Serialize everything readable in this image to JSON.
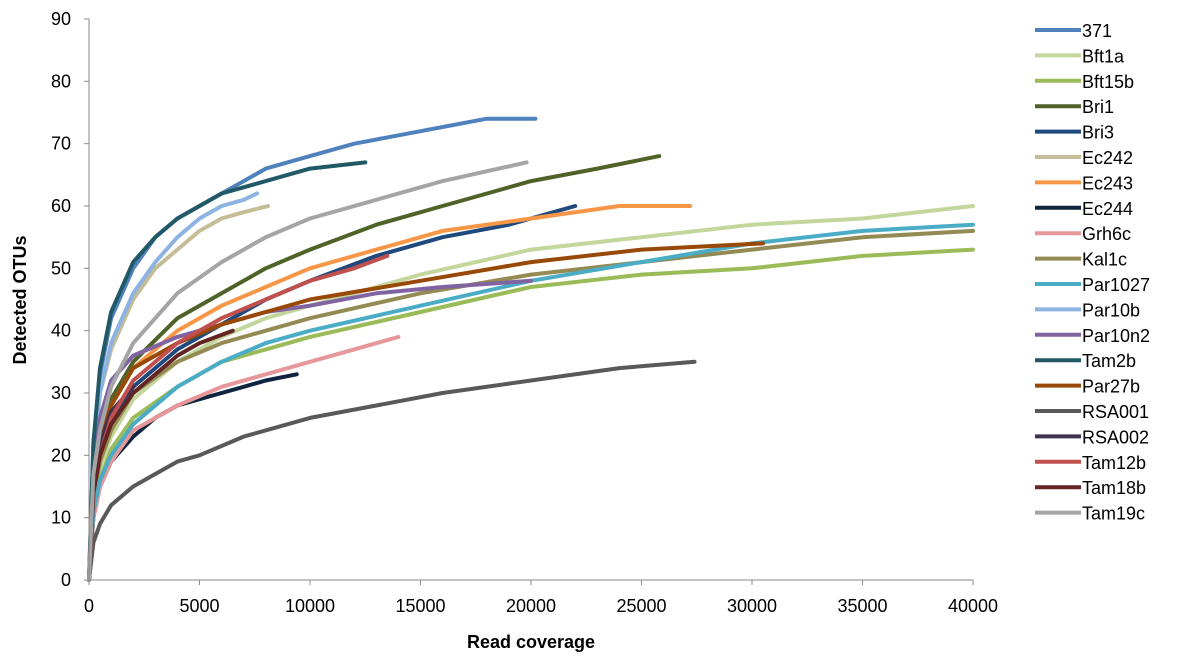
{
  "chart_data": {
    "type": "line",
    "title": "",
    "xlabel": "Read coverage",
    "ylabel": "Detected OTUs",
    "xlim": [
      0,
      40000
    ],
    "ylim": [
      0,
      90
    ],
    "x_ticks": [
      0,
      5000,
      10000,
      15000,
      20000,
      25000,
      30000,
      35000,
      40000
    ],
    "y_ticks": [
      0,
      10,
      20,
      30,
      40,
      50,
      60,
      70,
      80,
      90
    ],
    "grid": false,
    "legend_position": "right",
    "series": [
      {
        "name": "371",
        "color": "#4f81bd",
        "x": [
          0,
          200,
          500,
          1000,
          2000,
          3000,
          4000,
          5000,
          6000,
          7000,
          8000,
          10000,
          12000,
          15000,
          18000,
          20200
        ],
        "y": [
          0,
          22,
          33,
          42,
          50,
          55,
          58,
          60,
          62,
          64,
          66,
          68,
          70,
          72,
          74,
          74
        ]
      },
      {
        "name": "Bft1a",
        "color": "#c3d69b",
        "x": [
          0,
          200,
          500,
          1000,
          2000,
          4000,
          6000,
          8000,
          10000,
          15000,
          20000,
          25000,
          30000,
          35000,
          40000
        ],
        "y": [
          0,
          12,
          18,
          23,
          29,
          35,
          39,
          42,
          44,
          49,
          53,
          55,
          57,
          58,
          60
        ]
      },
      {
        "name": "Bft15b",
        "color": "#9bbb59",
        "x": [
          0,
          200,
          500,
          1000,
          2000,
          4000,
          6000,
          8000,
          10000,
          15000,
          20000,
          25000,
          30000,
          35000,
          40000
        ],
        "y": [
          0,
          11,
          16,
          21,
          26,
          31,
          35,
          37,
          39,
          43,
          47,
          49,
          50,
          52,
          53
        ]
      },
      {
        "name": "Bri1",
        "color": "#4f6228",
        "x": [
          0,
          200,
          500,
          1000,
          2000,
          4000,
          6000,
          8000,
          10000,
          13000,
          16000,
          20000,
          23000,
          25800
        ],
        "y": [
          0,
          16,
          23,
          29,
          35,
          42,
          46,
          50,
          53,
          57,
          60,
          64,
          66,
          68
        ]
      },
      {
        "name": "Bri3",
        "color": "#1f497d",
        "x": [
          0,
          200,
          500,
          1000,
          2000,
          4000,
          6000,
          8000,
          10000,
          13000,
          16000,
          19000,
          22000
        ],
        "y": [
          0,
          14,
          20,
          25,
          31,
          37,
          41,
          45,
          48,
          52,
          55,
          57,
          60
        ]
      },
      {
        "name": "Ec242",
        "color": "#c4bd97",
        "x": [
          0,
          200,
          500,
          1000,
          2000,
          3000,
          4000,
          5000,
          6000,
          7000,
          8100
        ],
        "y": [
          0,
          20,
          30,
          37,
          45,
          50,
          53,
          56,
          58,
          59,
          60
        ]
      },
      {
        "name": "Ec243",
        "color": "#f79646",
        "x": [
          0,
          200,
          500,
          1000,
          2000,
          4000,
          6000,
          8000,
          10000,
          13000,
          16000,
          20000,
          24000,
          27200
        ],
        "y": [
          0,
          16,
          22,
          28,
          34,
          40,
          44,
          47,
          50,
          53,
          56,
          58,
          60,
          60
        ]
      },
      {
        "name": "Ec244",
        "color": "#0f243e",
        "x": [
          0,
          200,
          500,
          1000,
          2000,
          3000,
          4000,
          5000,
          6000,
          7000,
          8000,
          9400
        ],
        "y": [
          0,
          10,
          15,
          19,
          23,
          26,
          28,
          29,
          30,
          31,
          32,
          33
        ]
      },
      {
        "name": "Grh6c",
        "color": "#e6979a",
        "x": [
          0,
          200,
          500,
          1000,
          2000,
          4000,
          6000,
          8000,
          10000,
          12000,
          14000
        ],
        "y": [
          0,
          10,
          15,
          19,
          24,
          28,
          31,
          33,
          35,
          37,
          39
        ]
      },
      {
        "name": "Kal1c",
        "color": "#948a54",
        "x": [
          0,
          200,
          500,
          1000,
          2000,
          4000,
          6000,
          8000,
          10000,
          15000,
          20000,
          25000,
          30000,
          35000,
          40000
        ],
        "y": [
          0,
          13,
          19,
          24,
          30,
          35,
          38,
          40,
          42,
          46,
          49,
          51,
          53,
          55,
          56
        ]
      },
      {
        "name": "Par1027",
        "color": "#4bacc6",
        "x": [
          0,
          200,
          500,
          1000,
          2000,
          4000,
          6000,
          8000,
          10000,
          15000,
          20000,
          25000,
          30000,
          35000,
          40000
        ],
        "y": [
          0,
          11,
          16,
          20,
          25,
          31,
          35,
          38,
          40,
          44,
          48,
          51,
          54,
          56,
          57
        ]
      },
      {
        "name": "Par10b",
        "color": "#8db3e2",
        "x": [
          0,
          200,
          500,
          1000,
          2000,
          3000,
          4000,
          5000,
          6000,
          7000,
          7600
        ],
        "y": [
          0,
          20,
          30,
          38,
          46,
          51,
          55,
          58,
          60,
          61,
          62
        ]
      },
      {
        "name": "Par10n2",
        "color": "#8064a2",
        "x": [
          0,
          200,
          500,
          1000,
          2000,
          4000,
          6000,
          8000,
          10000,
          13000,
          16000,
          20000
        ],
        "y": [
          0,
          18,
          26,
          32,
          36,
          39,
          41,
          43,
          44,
          46,
          47,
          48
        ]
      },
      {
        "name": "Tam2b",
        "color": "#215967",
        "x": [
          0,
          200,
          500,
          1000,
          2000,
          3000,
          4000,
          5000,
          6000,
          8000,
          10000,
          12500
        ],
        "y": [
          0,
          22,
          34,
          43,
          51,
          55,
          58,
          60,
          62,
          64,
          66,
          67
        ]
      },
      {
        "name": "Par27b",
        "color": "#984807",
        "x": [
          0,
          200,
          500,
          1000,
          2000,
          4000,
          6000,
          8000,
          10000,
          15000,
          20000,
          25000,
          30500
        ],
        "y": [
          0,
          15,
          22,
          28,
          34,
          38,
          41,
          43,
          45,
          48,
          51,
          53,
          54
        ]
      },
      {
        "name": "RSA001",
        "color": "#595959",
        "x": [
          0,
          200,
          500,
          1000,
          2000,
          3000,
          4000,
          5000,
          7000,
          10000,
          13000,
          16000,
          20000,
          24000,
          27400
        ],
        "y": [
          0,
          6,
          9,
          12,
          15,
          17,
          19,
          20,
          23,
          26,
          28,
          30,
          32,
          34,
          35
        ]
      },
      {
        "name": "RSA002",
        "color": "#403151",
        "x": [
          0,
          200,
          500,
          1000,
          1500,
          2000
        ],
        "y": [
          0,
          16,
          22,
          27,
          29,
          31
        ]
      },
      {
        "name": "Tam12b",
        "color": "#c0504d",
        "x": [
          0,
          200,
          500,
          1000,
          2000,
          4000,
          6000,
          8000,
          10000,
          12000,
          13500
        ],
        "y": [
          0,
          14,
          20,
          26,
          32,
          38,
          42,
          45,
          48,
          50,
          52
        ]
      },
      {
        "name": "Tam18b",
        "color": "#632523",
        "x": [
          0,
          200,
          500,
          1000,
          2000,
          3000,
          4000,
          5000,
          6500
        ],
        "y": [
          0,
          14,
          20,
          25,
          30,
          33,
          36,
          38,
          40
        ]
      },
      {
        "name": "Tam19c",
        "color": "#a5a5a5",
        "x": [
          0,
          200,
          500,
          1000,
          2000,
          4000,
          6000,
          8000,
          10000,
          13000,
          16000,
          19800
        ],
        "y": [
          0,
          17,
          24,
          31,
          38,
          46,
          51,
          55,
          58,
          61,
          64,
          67
        ]
      }
    ]
  }
}
